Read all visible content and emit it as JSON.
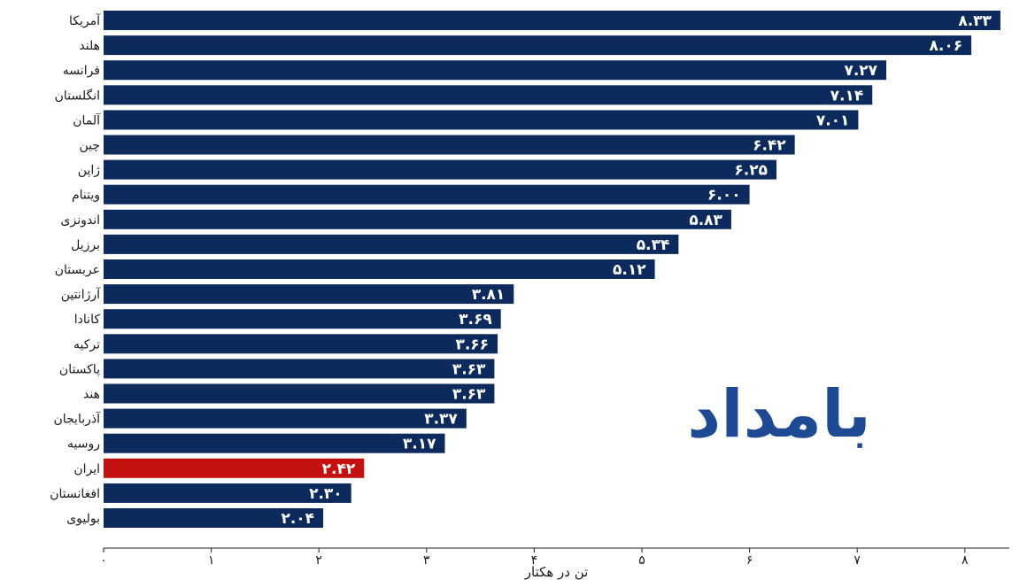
{
  "chart_data": {
    "type": "bar",
    "orientation": "horizontal",
    "categories": [
      "آمریکا",
      "هلند",
      "فرانسه",
      "انگلستان",
      "آلمان",
      "چین",
      "ژاپن",
      "ویتنام",
      "اندونزی",
      "برزیل",
      "عربستان",
      "آرژانتین",
      "کانادا",
      "ترکیه",
      "پاکستان",
      "هند",
      "آذربایجان",
      "روسیه",
      "ایران",
      "افغانستان",
      "بولیوی"
    ],
    "values": [
      8.33,
      8.06,
      7.27,
      7.14,
      7.01,
      6.42,
      6.25,
      6.0,
      5.83,
      5.34,
      5.12,
      3.81,
      3.69,
      3.66,
      3.63,
      3.63,
      3.37,
      3.17,
      2.42,
      2.3,
      2.04
    ],
    "value_labels": [
      "۸.۳۳",
      "۸.۰۶",
      "۷.۲۷",
      "۷.۱۴",
      "۷.۰۱",
      "۶.۴۲",
      "۶.۲۵",
      "۶.۰۰",
      "۵.۸۳",
      "۵.۳۴",
      "۵.۱۲",
      "۳.۸۱",
      "۳.۶۹",
      "۳.۶۶",
      "۳.۶۳",
      "۳.۶۳",
      "۳.۳۷",
      "۳.۱۷",
      "۲.۴۲",
      "۲.۳۰",
      "۲.۰۴"
    ],
    "highlight_category": "ایران",
    "xlabel": "تن در هکتار",
    "xlim": [
      0,
      8.5
    ],
    "xticks": [
      0,
      1,
      2,
      3,
      4,
      5,
      6,
      7,
      8
    ],
    "xtick_labels": [
      "۰",
      "۱",
      "۲",
      "۳",
      "۴",
      "۵",
      "۶",
      "۷",
      "۸"
    ],
    "grid": false,
    "legend": "none",
    "colors": {
      "bar": "#0d2a5c",
      "highlight": "#c4110f",
      "value_text": "#ffffff",
      "logo": "#1d4a92"
    }
  },
  "watermark": {
    "text": "بامداد"
  }
}
